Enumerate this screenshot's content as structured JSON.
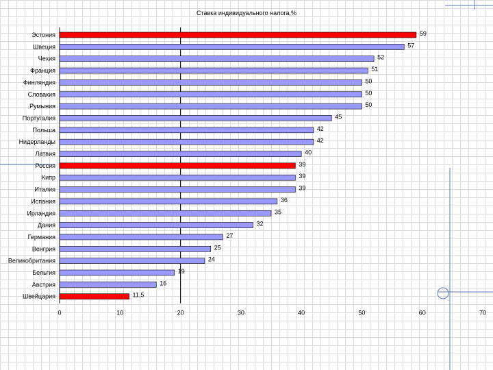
{
  "chart_data": {
    "type": "bar",
    "orientation": "horizontal",
    "title": "Ставка индивидуального налога,%",
    "categories": [
      "Эстония",
      "Швеция",
      "Чехия",
      "Франция",
      "Финляндия",
      "Словакия",
      "Румыния",
      "Португалия",
      "Польша",
      "Нидерланды",
      "Латвия",
      "Россия",
      "Кипр",
      "Италия",
      "Испания",
      "Ирландия",
      "Дания",
      "Германия",
      "Венгрия",
      "Великобритания",
      "Бельгия",
      "Австрия",
      "Швейцария"
    ],
    "values": [
      59,
      57,
      52,
      51,
      50,
      50,
      50,
      45,
      42,
      42,
      40,
      39,
      39,
      39,
      36,
      35,
      32,
      27,
      25,
      24,
      19,
      16,
      11.5
    ],
    "value_labels": [
      "59",
      "57",
      "52",
      "51",
      "50",
      "50",
      "50",
      "45",
      "42",
      "42",
      "40",
      "39",
      "39",
      "39",
      "36",
      "35",
      "32",
      "27",
      "25",
      "24",
      "19",
      "16",
      "11,5"
    ],
    "highlighted": [
      "Эстония",
      "Россия",
      "Швейцария"
    ],
    "xlim": [
      0,
      70
    ],
    "x_ticks": [
      0,
      10,
      20,
      30,
      40,
      50,
      60,
      70
    ],
    "reference_line_x": 20,
    "xlabel": "",
    "ylabel": "",
    "grid": false,
    "colors": {
      "default_bar": "#9999ff",
      "highlight_bar": "#ff0000",
      "bar_edge": "#000000"
    }
  }
}
